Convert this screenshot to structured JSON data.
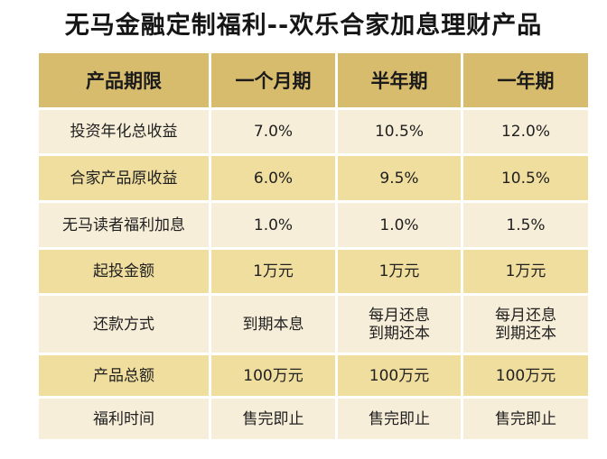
{
  "title": "无马金融定制福利--欢乐合家加息理财产品",
  "table": {
    "headers": [
      "产品期限",
      "一个月期",
      "半年期",
      "一年期"
    ],
    "rows": [
      {
        "label": "投资年化总收益",
        "values": [
          "7.0%",
          "10.5%",
          "12.0%"
        ]
      },
      {
        "label": "合家产品原收益",
        "values": [
          "6.0%",
          "9.5%",
          "10.5%"
        ]
      },
      {
        "label": "无马读者福利加息",
        "values": [
          "1.0%",
          "1.0%",
          "1.5%"
        ]
      },
      {
        "label": "起投金额",
        "values": [
          "1万元",
          "1万元",
          "1万元"
        ]
      },
      {
        "label": "还款方式",
        "values": [
          [
            "到期本息"
          ],
          [
            "每月还息",
            "到期还本"
          ],
          [
            "每月还息",
            "到期还本"
          ]
        ]
      },
      {
        "label": "产品总额",
        "values": [
          "100万元",
          "100万元",
          "100万元"
        ]
      },
      {
        "label": "福利时间",
        "values": [
          "售完即止",
          "售完即止",
          "售完即止"
        ]
      }
    ]
  }
}
